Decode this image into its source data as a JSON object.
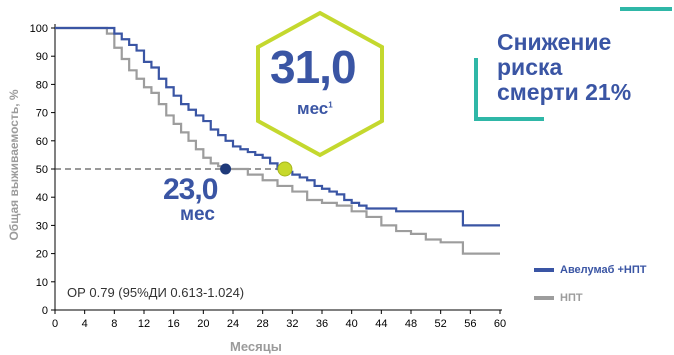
{
  "chart_data": {
    "type": "line",
    "step": true,
    "xlabel": "Месяцы",
    "ylabel": "Общая выживаемость, %",
    "xlim": [
      0,
      60
    ],
    "ylim": [
      0,
      100
    ],
    "x_ticks": [
      0,
      4,
      8,
      12,
      16,
      20,
      24,
      28,
      32,
      36,
      40,
      44,
      48,
      52,
      56,
      60
    ],
    "y_ticks": [
      0,
      10,
      20,
      30,
      40,
      50,
      60,
      70,
      80,
      90,
      100
    ],
    "grid": false,
    "legend_position": "bottom-right",
    "series": [
      {
        "name": "Авелумаб +НПТ",
        "color": "#3a55a4",
        "x": [
          0,
          7.5,
          8,
          9,
          10,
          11,
          12,
          13,
          14,
          15,
          16,
          17,
          18,
          19,
          20,
          21,
          22,
          23,
          24,
          25,
          26,
          27,
          28,
          29,
          30,
          31,
          32,
          33,
          34,
          35,
          36,
          37,
          38,
          39,
          40,
          41,
          42,
          44,
          46,
          48,
          50,
          52,
          54.5,
          55,
          60
        ],
        "y": [
          100,
          100,
          98,
          96,
          94,
          92,
          88,
          86,
          82,
          79,
          76,
          73,
          71,
          69,
          67,
          64,
          62,
          60,
          58,
          57,
          56,
          55,
          54,
          52,
          50,
          49,
          48,
          47,
          46,
          44,
          43,
          42,
          41,
          39,
          38,
          37,
          36,
          36,
          35,
          35,
          35,
          35,
          35,
          30,
          30
        ]
      },
      {
        "name": "НПТ",
        "color": "#9d9d9d",
        "x": [
          0,
          7,
          8,
          9,
          10,
          11,
          12,
          13,
          14,
          15,
          16,
          17,
          18,
          19,
          20,
          21,
          22,
          23,
          24,
          26,
          28,
          30,
          32,
          34,
          36,
          38,
          40,
          42,
          44,
          46,
          48,
          50,
          52,
          55,
          60
        ],
        "y": [
          100,
          98,
          93,
          89,
          85,
          82,
          79,
          77,
          73,
          69,
          66,
          63,
          60,
          57,
          54,
          52,
          51,
          50,
          50,
          48,
          46,
          44,
          42,
          39,
          38,
          37,
          35,
          33,
          30,
          28,
          27,
          25,
          24,
          20,
          20
        ]
      }
    ],
    "median_markers": [
      {
        "x": 23.0,
        "y": 50,
        "color": "#1f3a7a"
      },
      {
        "x": 31.0,
        "y": 50,
        "color": "#c7d92b"
      }
    ]
  },
  "median_np": {
    "value": "23,0",
    "unit": "мес"
  },
  "median_av": {
    "value": "31,0",
    "unit": "мес",
    "superscript": "1"
  },
  "headline": [
    "Снижение",
    "риска",
    "смерти 21%"
  ],
  "hazard_ratio": "ОР 0.79 (95%ДИ 0.613-1.024)",
  "legend": [
    {
      "label": "Авелумаб +НПТ",
      "color": "#3a55a4"
    },
    {
      "label": "НПТ",
      "color": "#9d9d9d"
    }
  ]
}
